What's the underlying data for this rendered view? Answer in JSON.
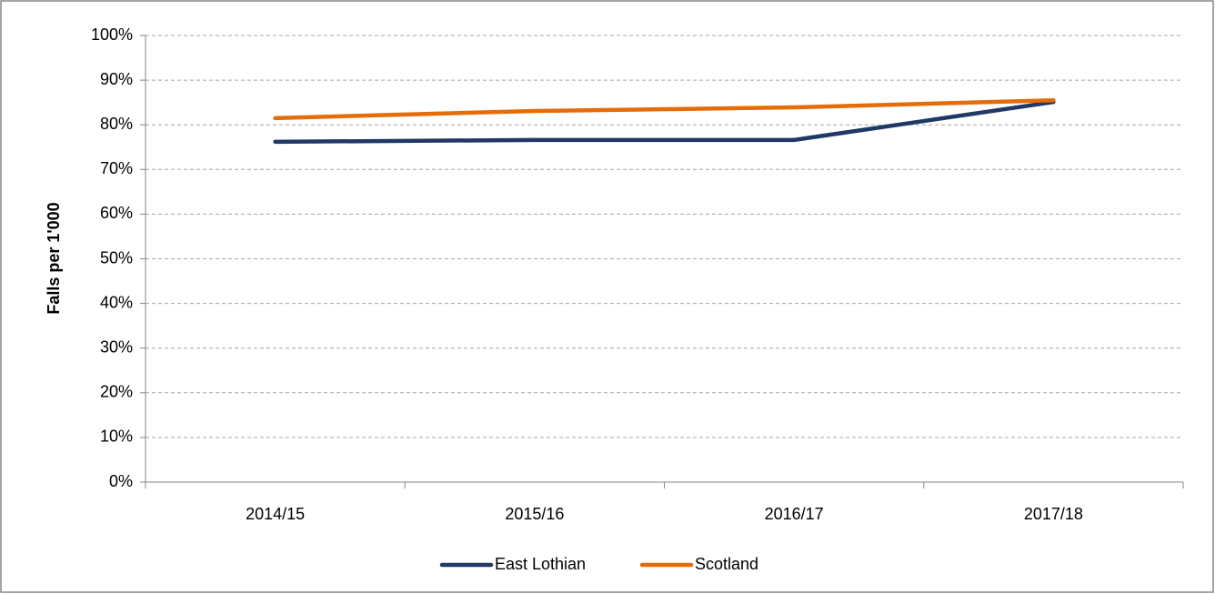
{
  "chart_data": {
    "type": "line",
    "y_axis_label": "Falls per 1'000",
    "categories": [
      "2014/15",
      "2015/16",
      "2016/17",
      "2017/18"
    ],
    "series": [
      {
        "name": "East Lothian",
        "color": "#1f3864",
        "values": [
          76.2,
          76.6,
          76.6,
          85.1
        ]
      },
      {
        "name": "Scotland",
        "color": "#e46c0a",
        "values": [
          81.5,
          83.1,
          83.9,
          85.5
        ]
      }
    ],
    "ylim": [
      0,
      100
    ],
    "yticks": [
      {
        "value": 0,
        "label": "0%"
      },
      {
        "value": 10,
        "label": "10%"
      },
      {
        "value": 20,
        "label": "20%"
      },
      {
        "value": 30,
        "label": "30%"
      },
      {
        "value": 40,
        "label": "40%"
      },
      {
        "value": 50,
        "label": "50%"
      },
      {
        "value": 60,
        "label": "60%"
      },
      {
        "value": 70,
        "label": "70%"
      },
      {
        "value": 80,
        "label": "80%"
      },
      {
        "value": 90,
        "label": "90%"
      },
      {
        "value": 100,
        "label": "100%"
      }
    ],
    "grid": true,
    "legend": "bottom"
  }
}
